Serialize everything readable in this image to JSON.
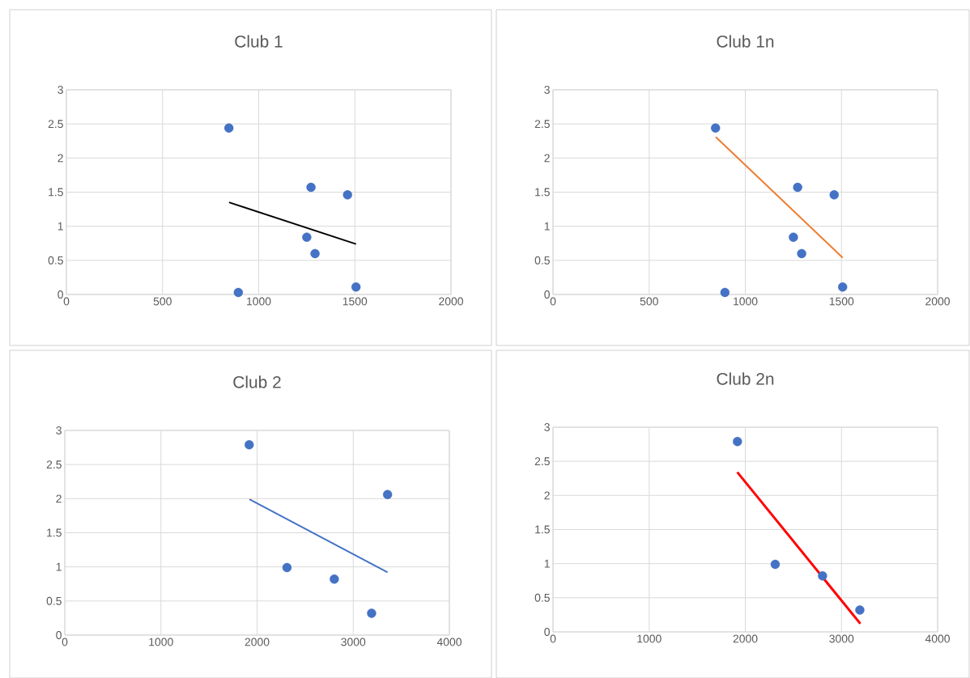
{
  "chart_data": [
    {
      "type": "scatter",
      "title": "Club 1",
      "xlim": [
        0,
        2000
      ],
      "ylim": [
        0,
        3
      ],
      "xticks": [
        0,
        500,
        1000,
        1500,
        2000
      ],
      "yticks": [
        0,
        0.5,
        1,
        1.5,
        2,
        2.5,
        3
      ],
      "grid": true,
      "legend": false,
      "series": [
        {
          "marker": "circle",
          "color": "#4472c4",
          "x": [
            845,
            1272,
            1462,
            1250,
            1293,
            894,
            1506
          ],
          "values": [
            2.44,
            1.57,
            1.46,
            0.84,
            0.6,
            0.03,
            0.11
          ]
        },
        {
          "type": "line",
          "marker": "none",
          "color": "#000000",
          "x": [
            846,
            1506
          ],
          "values": [
            1.35,
            0.74
          ]
        }
      ]
    },
    {
      "type": "scatter",
      "title": "Club 1n",
      "xlim": [
        0,
        2000
      ],
      "ylim": [
        0,
        3
      ],
      "xticks": [
        0,
        500,
        1000,
        1500,
        2000
      ],
      "yticks": [
        0,
        0.5,
        1,
        1.5,
        2,
        2.5,
        3
      ],
      "grid": true,
      "legend": false,
      "series": [
        {
          "marker": "circle",
          "color": "#4472c4",
          "x": [
            845,
            1272,
            1462,
            1250,
            1293,
            894,
            1506
          ],
          "values": [
            2.44,
            1.57,
            1.46,
            0.84,
            0.6,
            0.03,
            0.11
          ]
        },
        {
          "type": "line",
          "marker": "none",
          "color": "#ed7d31",
          "x": [
            846,
            1506
          ],
          "values": [
            2.31,
            0.54
          ]
        }
      ]
    },
    {
      "type": "scatter",
      "title": "Club 2",
      "xlim": [
        0,
        4000
      ],
      "ylim": [
        0,
        3
      ],
      "xticks": [
        0,
        1000,
        2000,
        3000,
        4000
      ],
      "yticks": [
        0,
        0.5,
        1,
        1.5,
        2,
        2.5,
        3
      ],
      "grid": true,
      "legend": false,
      "series": [
        {
          "marker": "circle",
          "color": "#4472c4",
          "x": [
            1918,
            2311,
            2803,
            3191,
            3357
          ],
          "values": [
            2.79,
            0.99,
            0.82,
            0.32,
            2.06
          ]
        },
        {
          "type": "line",
          "marker": "none",
          "color": "#4472c4",
          "x": [
            1921,
            3357
          ],
          "values": [
            1.99,
            0.92
          ]
        }
      ]
    },
    {
      "type": "scatter",
      "title": "Club 2n",
      "xlim": [
        0,
        4000
      ],
      "ylim": [
        0,
        3
      ],
      "xticks": [
        0,
        1000,
        2000,
        3000,
        4000
      ],
      "yticks": [
        0,
        0.5,
        1,
        1.5,
        2,
        2.5,
        3
      ],
      "grid": true,
      "legend": false,
      "series": [
        {
          "marker": "circle",
          "color": "#4472c4",
          "x": [
            1918,
            2311,
            2803,
            3191
          ],
          "values": [
            2.79,
            0.99,
            0.82,
            0.32
          ]
        },
        {
          "type": "line",
          "marker": "none",
          "color": "#ff0000",
          "x": [
            1917,
            3196
          ],
          "values": [
            2.34,
            0.12
          ]
        }
      ]
    }
  ]
}
